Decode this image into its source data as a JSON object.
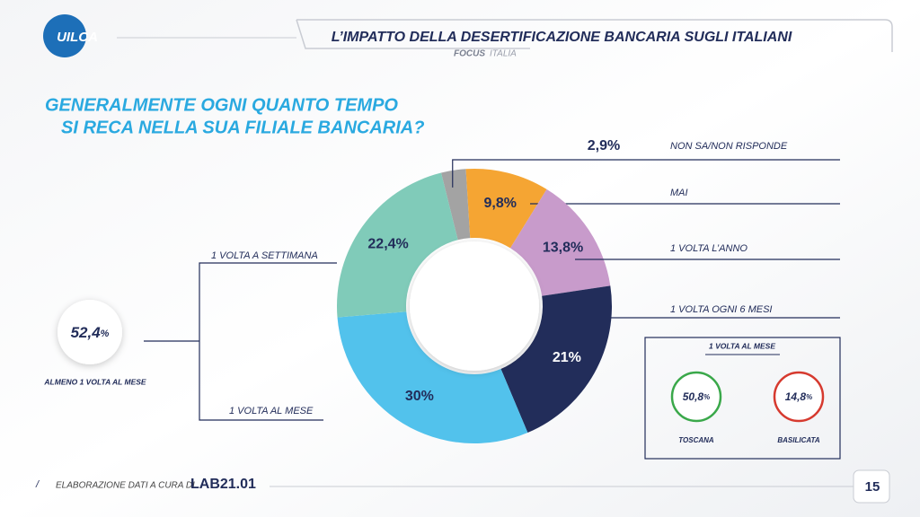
{
  "header": {
    "logo": "UILCA",
    "title": "L’IMPATTO DELLA DESERTIFICAZIONE BANCARIA SUGLI ITALIANI",
    "focus": "FOCUS",
    "scope": "ITALIA"
  },
  "question": [
    "GENERALMENTE OGNI QUANTO TEMPO",
    "SI RECA NELLA SUA FILIALE BANCARIA?"
  ],
  "chart_data": {
    "type": "donut",
    "categories": [
      "NON SA/NON RISPONDE",
      "MAI",
      "1 VOLTA L’ANNO",
      "1 VOLTA OGNI 6 MESI",
      "1 VOLTA AL MESE",
      "1 VOLTA A SETTIMANA"
    ],
    "values": [
      2.9,
      9.8,
      13.8,
      21,
      30,
      22.4
    ],
    "value_labels": [
      "2,9%",
      "9,8%",
      "13,8%",
      "21%",
      "30%",
      "22,4%"
    ],
    "colors": [
      "#a3a3a3",
      "#f5a533",
      "#c89bcb",
      "#222d5a",
      "#52c2ec",
      "#80cbb9"
    ]
  },
  "summary": {
    "number": "52,4",
    "unit": "%",
    "label": "ALMENO 1 VOLTA AL MESE"
  },
  "regional": {
    "title": "1 VOLTA AL MESE",
    "items": [
      {
        "number": "50,8",
        "unit": "%",
        "label": "TOSCANA"
      },
      {
        "number": "14,8",
        "unit": "%",
        "label": "BASILICATA"
      }
    ]
  },
  "footer": {
    "credit": "ELABORAZIONE DATI A CURA DI",
    "lab": "LAB21.01",
    "page": "15"
  }
}
